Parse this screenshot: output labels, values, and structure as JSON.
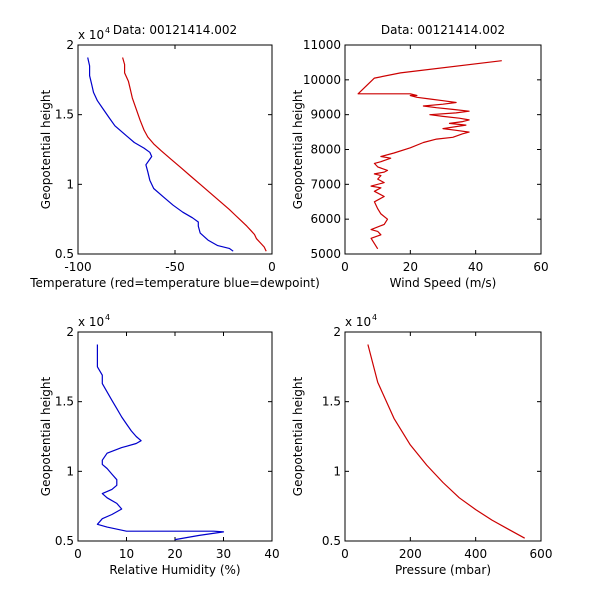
{
  "chart_data": [
    {
      "type": "line",
      "title": "Data: 00121414.002",
      "xlabel": "Temperature (red=temperature blue=dewpoint)",
      "ylabel": "Geopotential height",
      "xlim": [
        -100,
        0
      ],
      "ylim": [
        5000,
        20000
      ],
      "xticks": [
        "-100",
        "-50",
        "0"
      ],
      "yticks": [
        "0.5",
        "1",
        "1.5",
        "2"
      ],
      "y_exponent_base": "x 10",
      "y_exponent_power": "4",
      "grid": false,
      "series": [
        {
          "color": "#cc0000",
          "x": [
            -3,
            -4,
            -6,
            -8,
            -9,
            -11,
            -13,
            -16,
            -19,
            -22,
            -27,
            -32,
            -37,
            -42,
            -47,
            -52,
            -57,
            -61,
            -64,
            -66,
            -68,
            -70,
            -72,
            -73,
            -74,
            -76,
            -76,
            -77
          ],
          "y": [
            5200,
            5500,
            5800,
            6100,
            6400,
            6700,
            7000,
            7400,
            7800,
            8200,
            8800,
            9400,
            10000,
            10600,
            11200,
            11800,
            12400,
            12900,
            13400,
            13900,
            14600,
            15400,
            16200,
            16800,
            17400,
            18000,
            18600,
            19100
          ]
        },
        {
          "color": "#0000cc",
          "x": [
            -20,
            -22,
            -28,
            -33,
            -37,
            -38,
            -38,
            -41,
            -46,
            -51,
            -56,
            -61,
            -63,
            -64,
            -65,
            -62,
            -63,
            -66,
            -71,
            -76,
            -81,
            -84,
            -87,
            -90,
            -92,
            -93,
            -94,
            -94,
            -95
          ],
          "y": [
            5200,
            5400,
            5600,
            6000,
            6500,
            7000,
            7300,
            7600,
            8000,
            8500,
            9100,
            9700,
            10300,
            10900,
            11400,
            12000,
            12300,
            12600,
            13000,
            13600,
            14200,
            14800,
            15400,
            16000,
            16600,
            17200,
            17800,
            18500,
            19100
          ]
        }
      ]
    },
    {
      "type": "line",
      "title": "Data: 00121414.002",
      "xlabel": "Wind Speed (m/s)",
      "ylabel": "Geopotential height",
      "xlim": [
        0,
        60
      ],
      "ylim": [
        5000,
        11000
      ],
      "xticks": [
        "0",
        "20",
        "40",
        "60"
      ],
      "yticks": [
        "5000",
        "6000",
        "7000",
        "8000",
        "9000",
        "10000",
        "11000"
      ],
      "grid": false,
      "series": [
        {
          "color": "#cc0000",
          "x": [
            10,
            9,
            8,
            11,
            10,
            8,
            12,
            13,
            11,
            10,
            9,
            12,
            9,
            11,
            8,
            12,
            10,
            11,
            9,
            12,
            13,
            10,
            9,
            11,
            14,
            11,
            15,
            20,
            24,
            28,
            33,
            36,
            38,
            34,
            30,
            37,
            32,
            36,
            38,
            35,
            30,
            26,
            34,
            38,
            33,
            28,
            24,
            30,
            34,
            30,
            26,
            22,
            20,
            22,
            20,
            18,
            16,
            14,
            12,
            10,
            8,
            6,
            4,
            9,
            17,
            48
          ],
          "y": [
            5150,
            5300,
            5450,
            5550,
            5650,
            5700,
            5850,
            6000,
            6150,
            6300,
            6500,
            6650,
            6800,
            6900,
            6950,
            7050,
            7150,
            7250,
            7300,
            7350,
            7400,
            7500,
            7600,
            7650,
            7750,
            7800,
            7900,
            8050,
            8200,
            8300,
            8350,
            8450,
            8500,
            8550,
            8600,
            8700,
            8750,
            8800,
            8850,
            8900,
            8950,
            9000,
            9050,
            9100,
            9150,
            9200,
            9250,
            9300,
            9350,
            9400,
            9450,
            9500,
            9550,
            9550,
            9600,
            9600,
            9600,
            9600,
            9600,
            9600,
            9600,
            9600,
            9600,
            10050,
            10200,
            10550
          ]
        }
      ]
    },
    {
      "type": "line",
      "title": "",
      "xlabel": "Relative Humidity (%)",
      "ylabel": "Geopotential height",
      "xlim": [
        0,
        40
      ],
      "ylim": [
        5000,
        20000
      ],
      "xticks": [
        "0",
        "10",
        "20",
        "30",
        "40"
      ],
      "yticks": [
        "0.5",
        "1",
        "1.5",
        "2"
      ],
      "y_exponent_base": "x 10",
      "y_exponent_power": "4",
      "grid": false,
      "series": [
        {
          "color": "#0000cc",
          "x": [
            20,
            25,
            30,
            28,
            20,
            10,
            6,
            4,
            5,
            7,
            9,
            8,
            6,
            5,
            7,
            8,
            8,
            7,
            6,
            5,
            5,
            6,
            9,
            12,
            13,
            12,
            11,
            10,
            9,
            8,
            7,
            6,
            5,
            5,
            4,
            4,
            4
          ],
          "y": [
            5100,
            5400,
            5650,
            5700,
            5700,
            5700,
            6000,
            6200,
            6600,
            6900,
            7300,
            7700,
            8100,
            8400,
            8700,
            9000,
            9400,
            9800,
            10200,
            10500,
            10800,
            11300,
            11700,
            12000,
            12200,
            12500,
            12900,
            13400,
            13900,
            14500,
            15100,
            15700,
            16300,
            16900,
            17500,
            18200,
            19100
          ]
        }
      ]
    },
    {
      "type": "line",
      "title": "",
      "xlabel": "Pressure (mbar)",
      "ylabel": "Geopotential height",
      "xlim": [
        0,
        600
      ],
      "ylim": [
        5000,
        20000
      ],
      "xticks": [
        "0",
        "200",
        "400",
        "600"
      ],
      "yticks": [
        "0.5",
        "1",
        "1.5",
        "2"
      ],
      "y_exponent_base": "x 10",
      "y_exponent_power": "4",
      "grid": false,
      "series": [
        {
          "color": "#cc0000",
          "x": [
            550,
            500,
            450,
            400,
            350,
            300,
            250,
            200,
            150,
            100,
            70
          ],
          "y": [
            5200,
            5850,
            6500,
            7250,
            8100,
            9200,
            10450,
            11900,
            13800,
            16400,
            19100
          ]
        }
      ]
    }
  ]
}
